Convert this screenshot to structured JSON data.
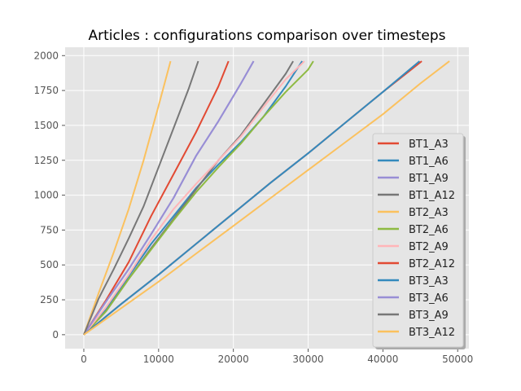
{
  "chart_data": {
    "type": "line",
    "title": "Articles : configurations comparison over timesteps",
    "xlabel": "",
    "ylabel": "",
    "xlim": [
      -2500,
      51500
    ],
    "ylim": [
      -100,
      2060
    ],
    "xticks": [
      0,
      10000,
      20000,
      30000,
      40000,
      50000
    ],
    "yticks": [
      0,
      250,
      500,
      750,
      1000,
      1250,
      1500,
      1750,
      2000
    ],
    "grid": true,
    "legend_position": "lower-right",
    "series": [
      {
        "name": "BT1_A3",
        "color": "#E24A33",
        "x": [
          0,
          3000,
          6000,
          9000,
          12000,
          15000,
          18000,
          19350
        ],
        "y": [
          0,
          250,
          520,
          850,
          1150,
          1450,
          1780,
          1960
        ]
      },
      {
        "name": "BT1_A6",
        "color": "#348ABD",
        "x": [
          0,
          3000,
          6000,
          9000,
          12000,
          15000,
          18000,
          21000,
          24000,
          27000,
          29200
        ],
        "y": [
          0,
          180,
          420,
          650,
          850,
          1050,
          1220,
          1380,
          1560,
          1780,
          1960
        ]
      },
      {
        "name": "BT1_A9",
        "color": "#988ED5",
        "x": [
          0,
          3000,
          6000,
          9000,
          12000,
          15000,
          18000,
          21000,
          22700
        ],
        "y": [
          0,
          240,
          470,
          720,
          980,
          1280,
          1530,
          1800,
          1960
        ]
      },
      {
        "name": "BT1_A12",
        "color": "#777777",
        "x": [
          0,
          3000,
          6000,
          9000,
          12000,
          15000,
          18000,
          21000,
          24000,
          27000,
          28000
        ],
        "y": [
          0,
          170,
          400,
          620,
          830,
          1040,
          1250,
          1430,
          1650,
          1870,
          1960
        ]
      },
      {
        "name": "BT2_A3",
        "color": "#FBC15E",
        "x": [
          0,
          2000,
          4000,
          6000,
          8000,
          10000,
          11600
        ],
        "y": [
          0,
          300,
          590,
          900,
          1250,
          1640,
          1960
        ]
      },
      {
        "name": "BT2_A6",
        "color": "#8EBA42",
        "x": [
          0,
          3000,
          6000,
          9000,
          12000,
          15000,
          18000,
          21000,
          24000,
          27000,
          30000,
          30700
        ],
        "y": [
          0,
          170,
          400,
          610,
          820,
          1020,
          1200,
          1370,
          1560,
          1740,
          1900,
          1960
        ]
      },
      {
        "name": "BT2_A9",
        "color": "#FFB5B8",
        "x": [
          0,
          3000,
          6000,
          9000,
          12000,
          15000,
          18000,
          21000,
          24000,
          27000,
          29500
        ],
        "y": [
          0,
          200,
          430,
          680,
          900,
          1080,
          1250,
          1420,
          1630,
          1830,
          1960
        ]
      },
      {
        "name": "BT2_A12",
        "color": "#E24A33",
        "x": [
          0,
          5000,
          10000,
          15000,
          20000,
          25000,
          30000,
          35000,
          40000,
          45200
        ],
        "y": [
          0,
          220,
          430,
          650,
          870,
          1090,
          1300,
          1520,
          1740,
          1960
        ]
      },
      {
        "name": "BT3_A3",
        "color": "#348ABD",
        "x": [
          0,
          5000,
          10000,
          15000,
          20000,
          25000,
          30000,
          35000,
          40000,
          44900
        ],
        "y": [
          0,
          220,
          430,
          650,
          870,
          1090,
          1300,
          1520,
          1740,
          1960
        ]
      },
      {
        "name": "BT3_A6",
        "color": "#988ED5",
        "x": [
          0,
          3000,
          6000,
          9000,
          12000,
          15000,
          18000,
          21000,
          22700
        ],
        "y": [
          0,
          240,
          470,
          720,
          980,
          1280,
          1530,
          1800,
          1960
        ]
      },
      {
        "name": "BT3_A9",
        "color": "#777777",
        "x": [
          0,
          2000,
          4000,
          6000,
          8000,
          10000,
          12000,
          14000,
          15300
        ],
        "y": [
          0,
          260,
          470,
          690,
          920,
          1200,
          1480,
          1760,
          1960
        ]
      },
      {
        "name": "BT3_A12",
        "color": "#FBC15E",
        "x": [
          0,
          5000,
          10000,
          15000,
          20000,
          25000,
          30000,
          35000,
          40000,
          45000,
          48900
        ],
        "y": [
          0,
          190,
          380,
          580,
          780,
          980,
          1180,
          1380,
          1580,
          1800,
          1960
        ]
      }
    ]
  }
}
